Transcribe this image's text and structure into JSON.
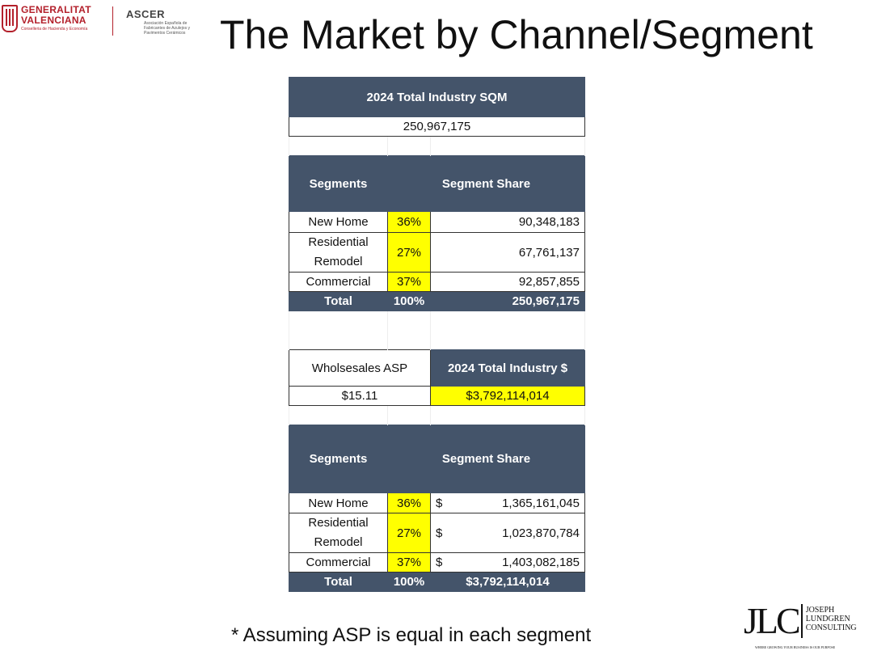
{
  "logos": {
    "generalitat": {
      "line1": "GENERALITAT",
      "line2": "VALENCIANA",
      "line3": "Conselleria de Hacienda y Economía"
    },
    "ascer": {
      "name": "ASCER",
      "subtitle": "Asociación Española de Fabricantes de Azulejos y Pavimentos Cerámicos"
    },
    "jlc": {
      "mark": "JLC",
      "name": [
        "JOSEPH",
        "LUNDGREN",
        "CONSULTING"
      ],
      "tagline": "WHERE GROWING YOUR BUSINESS IS OUR PURPOSE"
    }
  },
  "title": "The Market by Channel/Segment",
  "sqm": {
    "header": "2024 Total Industry SQM",
    "total": "250,967,175",
    "segments_header": "Segments",
    "share_header": "Segment Share",
    "rows": [
      {
        "segment": "New Home",
        "pct": "36%",
        "value": "90,348,183"
      },
      {
        "segment": "Residential Remodel",
        "pct": "27%",
        "value": "67,761,137"
      },
      {
        "segment": "Commercial",
        "pct": "37%",
        "value": "92,857,855"
      }
    ],
    "total_row": {
      "label": "Total",
      "pct": "100%",
      "value": "250,967,175"
    }
  },
  "asp": {
    "label": "Wholsesales ASP",
    "value": "$15.11",
    "industry_header": "2024 Total Industry $",
    "industry_value": "$3,792,114,014"
  },
  "dollars": {
    "segments_header": "Segments",
    "share_header": "Segment Share",
    "currency": "$",
    "rows": [
      {
        "segment": "New Home",
        "pct": "36%",
        "value": "1,365,161,045"
      },
      {
        "segment": "Residential Remodel",
        "pct": "27%",
        "value": "1,023,870,784"
      },
      {
        "segment": "Commercial",
        "pct": "37%",
        "value": "1,403,082,185"
      }
    ],
    "total_row": {
      "label": "Total",
      "pct": "100%",
      "value": "$3,792,114,014"
    }
  },
  "footnote": "* Assuming ASP is equal in each segment",
  "colors": {
    "header_bg": "#44546a",
    "highlight": "#ffff00",
    "brand_red": "#b3202b",
    "ascer_orange": "#e07a1f"
  }
}
